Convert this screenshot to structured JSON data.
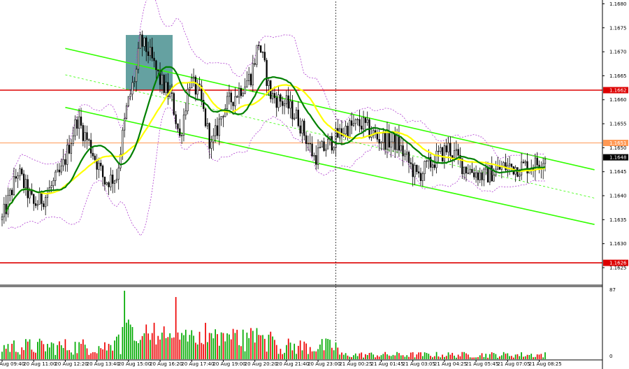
{
  "chart_data": {
    "type": "candlestick",
    "title": "",
    "grid": false,
    "colors": {
      "candle": "#000000",
      "ma_green": "#008000",
      "ma_yellow": "#ffff00",
      "channel": "#33ff00",
      "channel_mid": "#33ff00",
      "level_red": "#dd0000",
      "level_orange": "#ff9955",
      "bollinger": "#b040d0",
      "highlight_box": "#4a9090",
      "volume_green": "#00aa00",
      "volume_red": "#ee0000",
      "cursor_line": "#000000"
    },
    "price_axis": {
      "ylim": [
        1.16215,
        1.16805
      ],
      "ticks": [
        "1.1680",
        "1.1675",
        "1.1670",
        "1.1665",
        "1.1660",
        "1.1655",
        "1.1650",
        "1.1645",
        "1.1640",
        "1.1635",
        "1.1630",
        "1.1625"
      ],
      "tick_values": [
        1.168,
        1.1675,
        1.167,
        1.1665,
        1.166,
        1.1655,
        1.165,
        1.1645,
        1.164,
        1.1635,
        1.163,
        1.1625
      ]
    },
    "time_axis": {
      "labels": [
        "20 Aug 09:40",
        "20 Aug 11:00",
        "20 Aug 12:20",
        "20 Aug 13:40",
        "20 Aug 15:00",
        "20 Aug 16:20",
        "20 Aug 17:40",
        "20 Aug 19:00",
        "20 Aug 20:20",
        "20 Aug 21:40",
        "20 Aug 23:00",
        "21 Aug 00:25",
        "21 Aug 01:45",
        "21 Aug 03:05",
        "21 Aug 04:25",
        "21 Aug 05:45",
        "21 Aug 07:05",
        "21 Aug 08:25"
      ],
      "label_bar_index": [
        0,
        16,
        32,
        48,
        64,
        80,
        96,
        112,
        128,
        144,
        160,
        176,
        192,
        208,
        224,
        240,
        256,
        272
      ]
    },
    "levels": [
      {
        "name": "resistance",
        "value": 1.1662,
        "label": "1.1662",
        "color": "#dd0000"
      },
      {
        "name": "support",
        "value": 1.1626,
        "label": "1.1626",
        "color": "#dd0000"
      },
      {
        "name": "bid",
        "value": 1.1651,
        "label": "1.1651",
        "color": "#ff9955"
      }
    ],
    "current_price": {
      "value": 1.1648,
      "label": "1.1648"
    },
    "channel": {
      "upper": [
        [
          0,
          1.16707
        ],
        [
          300,
          1.16454
        ]
      ],
      "lower": [
        [
          0,
          1.16584
        ],
        [
          300,
          1.1634
        ]
      ],
      "mid": [
        [
          0,
          1.16652
        ],
        [
          300,
          1.16395
        ]
      ]
    },
    "highlight": {
      "from_bar": 63,
      "to_bar": 86,
      "high": 1.16735,
      "low": 1.1662
    },
    "cursor_bar": 169,
    "volume_axis": {
      "max": 87,
      "ticks": [
        "87",
        "0"
      ]
    },
    "candles": {
      "count": 276,
      "keypoints": [
        [
          0,
          1.1635
        ],
        [
          8,
          1.1645
        ],
        [
          16,
          1.1638
        ],
        [
          22,
          1.164
        ],
        [
          30,
          1.1645
        ],
        [
          38,
          1.1656
        ],
        [
          45,
          1.165
        ],
        [
          52,
          1.1643
        ],
        [
          58,
          1.1644
        ],
        [
          63,
          1.1658
        ],
        [
          68,
          1.1666
        ],
        [
          70,
          1.1672
        ],
        [
          74,
          1.167
        ],
        [
          80,
          1.1664
        ],
        [
          86,
          1.166
        ],
        [
          90,
          1.1652
        ],
        [
          95,
          1.1664
        ],
        [
          100,
          1.1661
        ],
        [
          106,
          1.165
        ],
        [
          112,
          1.1658
        ],
        [
          120,
          1.1662
        ],
        [
          126,
          1.1665
        ],
        [
          130,
          1.1672
        ],
        [
          136,
          1.1661
        ],
        [
          144,
          1.1659
        ],
        [
          150,
          1.1656
        ],
        [
          158,
          1.1648
        ],
        [
          166,
          1.1651
        ],
        [
          174,
          1.1654
        ],
        [
          182,
          1.1655
        ],
        [
          190,
          1.1652
        ],
        [
          200,
          1.1651
        ],
        [
          210,
          1.1644
        ],
        [
          218,
          1.1647
        ],
        [
          226,
          1.165
        ],
        [
          234,
          1.1646
        ],
        [
          244,
          1.1644
        ],
        [
          254,
          1.1646
        ],
        [
          262,
          1.1646
        ],
        [
          270,
          1.16465
        ],
        [
          275,
          1.1648
        ]
      ]
    }
  }
}
